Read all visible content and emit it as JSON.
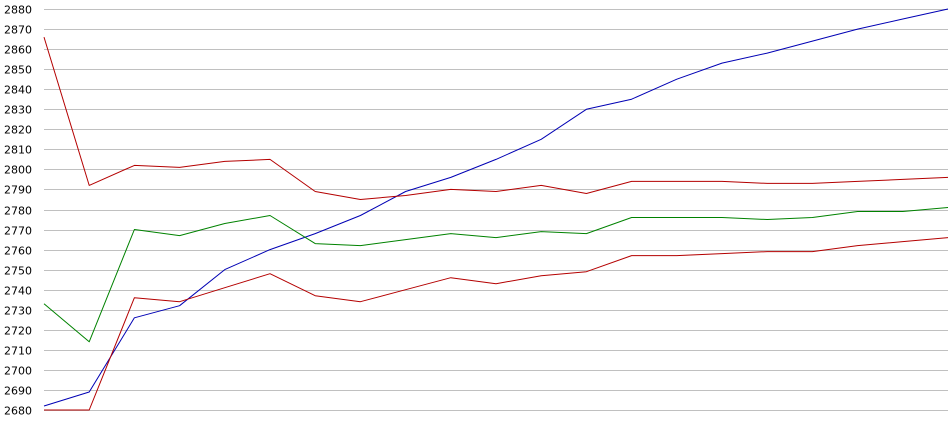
{
  "chart_data": {
    "type": "line",
    "title": "",
    "xlabel": "",
    "ylabel": "",
    "ylim": [
      2680,
      2880
    ],
    "yticks": [
      2680,
      2690,
      2700,
      2710,
      2720,
      2730,
      2740,
      2750,
      2760,
      2770,
      2780,
      2790,
      2800,
      2810,
      2820,
      2830,
      2840,
      2850,
      2860,
      2870,
      2880
    ],
    "grid": "horizontal",
    "legend": "none",
    "x": [
      1,
      6,
      11,
      16,
      21,
      26,
      31,
      36,
      41,
      46,
      51,
      56,
      61,
      66,
      71,
      76,
      81,
      86,
      91,
      96,
      101
    ],
    "series": [
      {
        "color": "#0000b4",
        "values": [
          2682,
          2689,
          2726,
          2732,
          2750,
          2760,
          2768,
          2777,
          2789,
          2796,
          2805,
          2815,
          2830,
          2835,
          2845,
          2853,
          2858,
          2864,
          2870,
          2875,
          2880
        ]
      },
      {
        "color": "#b40000",
        "values": [
          2866,
          2792,
          2802,
          2801,
          2804,
          2805,
          2789,
          2785,
          2787,
          2790,
          2789,
          2792,
          2788,
          2794,
          2794,
          2794,
          2793,
          2793,
          2794,
          2795,
          2796
        ]
      },
      {
        "color": "#008200",
        "values": [
          2733,
          2714,
          2770,
          2767,
          2773,
          2777,
          2763,
          2762,
          2765,
          2768,
          2766,
          2769,
          2768,
          2776,
          2776,
          2776,
          2775,
          2776,
          2779,
          2779,
          2781
        ]
      },
      {
        "color": "#b40000",
        "values": [
          2680,
          2680,
          2736,
          2734,
          2741,
          2748,
          2737,
          2734,
          2740,
          2746,
          2743,
          2747,
          2749,
          2757,
          2757,
          2758,
          2759,
          2759,
          2762,
          2764,
          2766
        ]
      }
    ]
  }
}
